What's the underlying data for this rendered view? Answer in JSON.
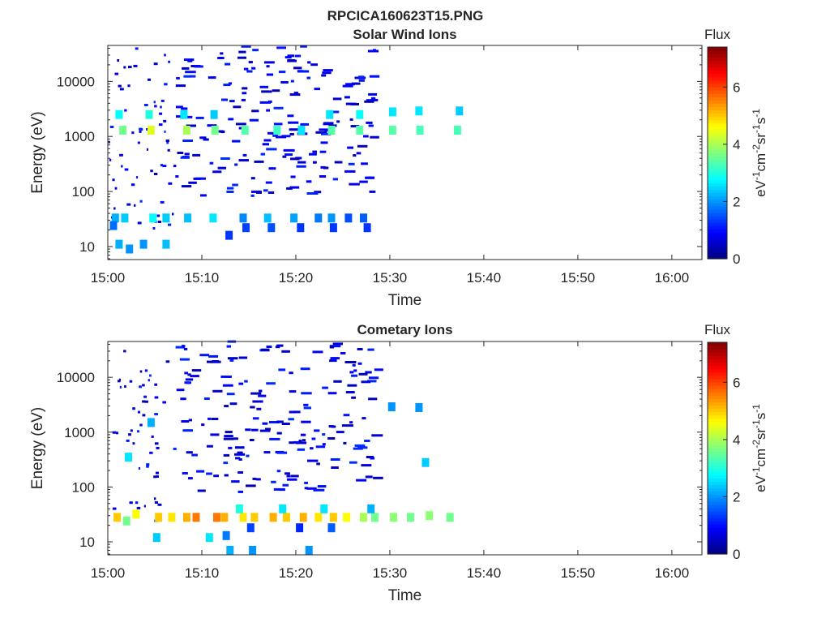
{
  "figure_title": "RPCICA160623T15.PNG",
  "colorbar": {
    "title": "Flux",
    "unit_html": "eV<sup>-1</sup>cm<sup>-2</sup>sr<sup>-1</sup>s<sup>-1</sup>",
    "range": [
      0,
      7.4
    ],
    "ticks": [
      0,
      2,
      4,
      6
    ],
    "colormap": "jet"
  },
  "chart_data": [
    {
      "type": "heatmap",
      "title": "Solar Wind Ions",
      "xlabel": "Time",
      "ylabel": "Energy (eV)",
      "x_ticks": [
        "15:00",
        "15:10",
        "15:20",
        "15:30",
        "15:40",
        "15:50",
        "16:00"
      ],
      "x_range_min": [
        0,
        63.2
      ],
      "y_ticks": [
        10,
        100,
        1000,
        10000
      ],
      "y_range_eV": [
        5.8,
        45000
      ],
      "y_scale": "log",
      "points_t_E_flux": [
        [
          1.6,
          1300,
          3.6
        ],
        [
          4.6,
          1300,
          4.4
        ],
        [
          8.4,
          1300,
          4.0
        ],
        [
          11.4,
          1300,
          3.6
        ],
        [
          14.6,
          1300,
          3.4
        ],
        [
          18.0,
          1300,
          3.2
        ],
        [
          20.6,
          1300,
          2.6
        ],
        [
          23.8,
          1300,
          3.4
        ],
        [
          26.8,
          1300,
          3.4
        ],
        [
          30.3,
          1300,
          3.4
        ],
        [
          33.2,
          1300,
          3.3
        ],
        [
          37.2,
          1300,
          3.3
        ],
        [
          1.2,
          2500,
          2.8
        ],
        [
          4.4,
          2500,
          3.0
        ],
        [
          8.1,
          2500,
          2.6
        ],
        [
          11.3,
          2500,
          2.4
        ],
        [
          23.6,
          2500,
          2.6
        ],
        [
          26.8,
          2500,
          2.8
        ],
        [
          30.3,
          2800,
          2.6
        ],
        [
          33.1,
          2900,
          2.6
        ],
        [
          37.4,
          2900,
          2.4
        ],
        [
          0.8,
          33,
          2.2
        ],
        [
          1.8,
          33,
          2.4
        ],
        [
          4.8,
          33,
          2.8
        ],
        [
          6.2,
          33,
          2.4
        ],
        [
          8.5,
          33,
          2.3
        ],
        [
          11.2,
          33,
          2.6
        ],
        [
          14.4,
          33,
          1.9
        ],
        [
          17.0,
          33,
          2.3
        ],
        [
          19.8,
          33,
          2.1
        ],
        [
          22.4,
          33,
          1.8
        ],
        [
          23.8,
          33,
          2.0
        ],
        [
          25.6,
          33,
          1.5
        ],
        [
          27.2,
          33,
          1.6
        ],
        [
          27.6,
          22,
          1.3
        ],
        [
          24.0,
          22,
          1.3
        ],
        [
          20.5,
          22,
          1.3
        ],
        [
          17.4,
          22,
          1.5
        ],
        [
          14.7,
          22,
          1.4
        ],
        [
          12.9,
          16,
          1.3
        ],
        [
          0.6,
          24,
          1.7
        ],
        [
          1.2,
          11,
          2.2
        ],
        [
          3.8,
          11,
          2.0
        ],
        [
          6.2,
          11,
          2.3
        ],
        [
          2.3,
          9,
          2.0
        ]
      ],
      "scattered_low_flux_present": true
    },
    {
      "type": "heatmap",
      "title": "Cometary Ions",
      "xlabel": "Time",
      "ylabel": "Energy (eV)",
      "x_ticks": [
        "15:00",
        "15:10",
        "15:20",
        "15:30",
        "15:40",
        "15:50",
        "16:00"
      ],
      "x_range_min": [
        0,
        63.2
      ],
      "y_ticks": [
        10,
        100,
        1000,
        10000
      ],
      "y_range_eV": [
        5.8,
        45000
      ],
      "y_scale": "log",
      "points_t_E_flux": [
        [
          1.0,
          28,
          5.0
        ],
        [
          2.0,
          24,
          3.6
        ],
        [
          3.0,
          32,
          4.6
        ],
        [
          5.4,
          28,
          5.0
        ],
        [
          6.8,
          28,
          4.8
        ],
        [
          8.4,
          28,
          5.2
        ],
        [
          9.4,
          28,
          5.6
        ],
        [
          11.6,
          28,
          5.6
        ],
        [
          12.4,
          28,
          5.2
        ],
        [
          14.4,
          28,
          4.8
        ],
        [
          15.6,
          28,
          5.0
        ],
        [
          17.6,
          28,
          5.2
        ],
        [
          19.0,
          28,
          5.0
        ],
        [
          20.8,
          28,
          5.2
        ],
        [
          22.4,
          28,
          4.8
        ],
        [
          24.0,
          28,
          5.0
        ],
        [
          25.4,
          28,
          4.6
        ],
        [
          27.2,
          28,
          4.0
        ],
        [
          28.4,
          28,
          3.6
        ],
        [
          30.4,
          28,
          3.8
        ],
        [
          32.2,
          28,
          3.6
        ],
        [
          34.2,
          30,
          3.8
        ],
        [
          36.4,
          28,
          3.6
        ],
        [
          14.0,
          40,
          3.0
        ],
        [
          18.6,
          40,
          2.6
        ],
        [
          23.0,
          40,
          2.6
        ],
        [
          28.0,
          40,
          2.2
        ],
        [
          23.8,
          18,
          1.6
        ],
        [
          20.4,
          18,
          1.2
        ],
        [
          15.2,
          18,
          1.4
        ],
        [
          12.6,
          13,
          1.8
        ],
        [
          5.2,
          12,
          2.4
        ],
        [
          10.8,
          12,
          2.6
        ],
        [
          13.0,
          7,
          2.2
        ],
        [
          15.4,
          7,
          2.0
        ],
        [
          21.4,
          7,
          2.0
        ],
        [
          2.2,
          350,
          2.6
        ],
        [
          33.8,
          280,
          2.4
        ],
        [
          30.2,
          2900,
          2.0
        ],
        [
          33.1,
          2800,
          2.0
        ],
        [
          4.6,
          1500,
          2.2
        ]
      ],
      "scattered_low_flux_present": true
    }
  ]
}
